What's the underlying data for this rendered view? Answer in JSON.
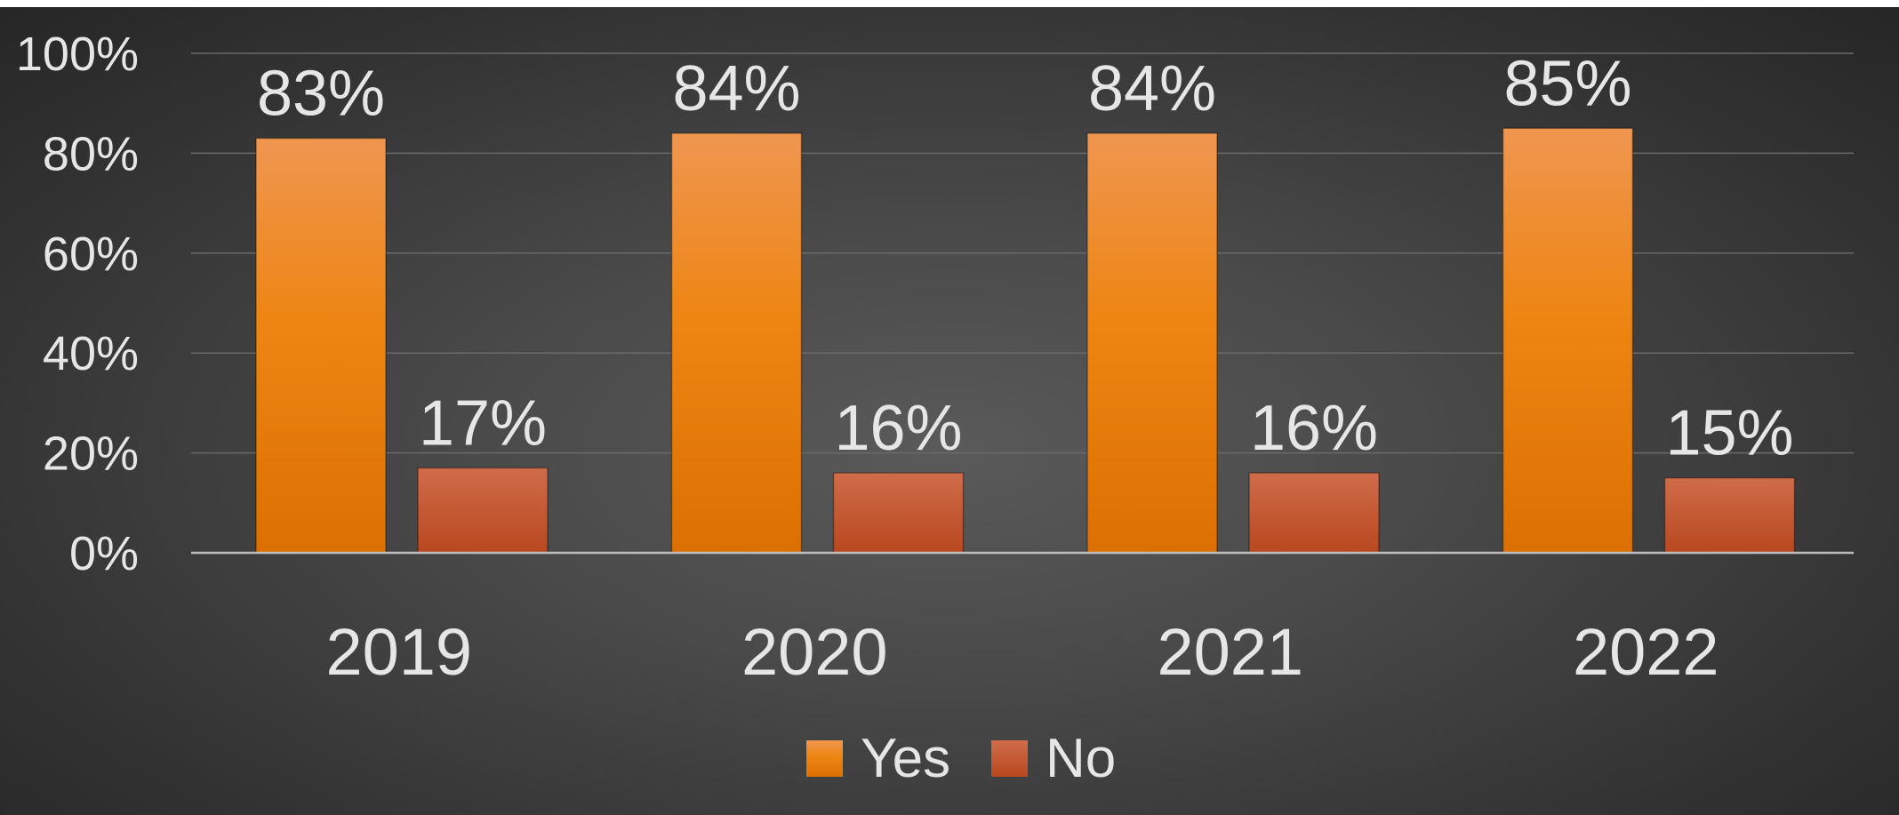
{
  "chart_data": {
    "type": "bar",
    "categories": [
      "2019",
      "2020",
      "2021",
      "2022"
    ],
    "series": [
      {
        "name": "Yes",
        "values": [
          83,
          84,
          84,
          85
        ],
        "labels": [
          "83%",
          "84%",
          "84%",
          "85%"
        ],
        "color": "#ED7D12"
      },
      {
        "name": "No",
        "values": [
          17,
          16,
          16,
          15
        ],
        "labels": [
          "17%",
          "16%",
          "16%",
          "15%"
        ],
        "color": "#C8522A"
      }
    ],
    "y_ticks": [
      "0%",
      "20%",
      "40%",
      "60%",
      "80%",
      "100%"
    ],
    "ylim": [
      0,
      100
    ],
    "grid": true,
    "legend_position": "bottom",
    "title": "",
    "xlabel": "",
    "ylabel": ""
  }
}
